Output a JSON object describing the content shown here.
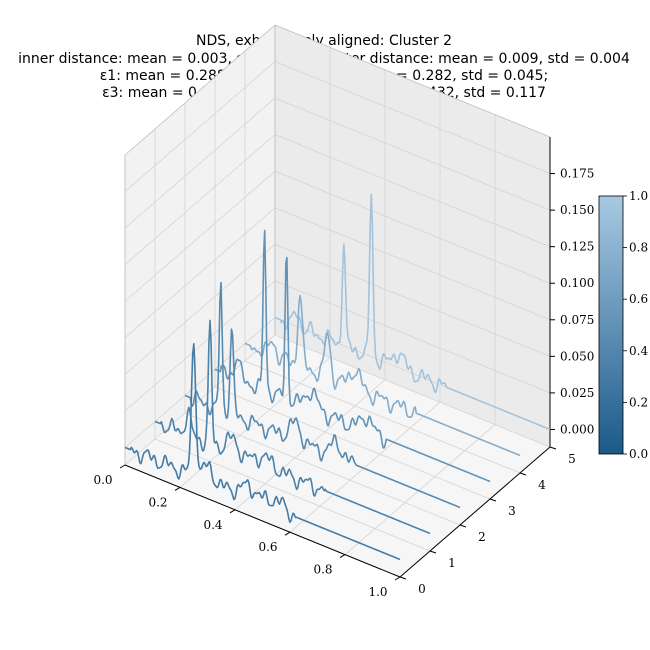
{
  "chart_data": {
    "type": "line",
    "projection": "3d",
    "title_lines": [
      "NDS, exhaustively aligned: Cluster 2",
      "inner distance: mean = 0.003, std = 0.001; outer distance: mean = 0.009, std = 0.004",
      "ε1: mean = 0.288, std = 0.111; ε2: mean = 0.282, std = 0.045;",
      "ε3: mean = 0.533, std = 0.074; ε4: mean = 0.432, std = 0.117"
    ],
    "x_ticks": [
      "0.0",
      "0.2",
      "0.4",
      "0.6",
      "0.8",
      "1.0"
    ],
    "y_ticks": [
      "0",
      "1",
      "2",
      "3",
      "4",
      "5"
    ],
    "z_ticks": [
      "0.000",
      "0.025",
      "0.050",
      "0.075",
      "0.100",
      "0.125",
      "0.150",
      "0.175"
    ],
    "xlim": [
      0,
      1
    ],
    "ylim": [
      0,
      5
    ],
    "zlim": [
      -0.012,
      0.2
    ],
    "grid": true,
    "colorbar": {
      "ticks": [
        "0.0",
        "0.2",
        "0.4",
        "0.6",
        "0.8",
        "1.0"
      ],
      "range": [
        0,
        1
      ],
      "color_low": "#1a5a8a",
      "color_high": "#a9c9e2"
    },
    "series": [
      {
        "y": 0,
        "color_value": 0.3,
        "peaks": [
          [
            0.25,
            0.09,
            0.008
          ],
          [
            0.3,
            0.01,
            0.02
          ],
          [
            0.45,
            0.008,
            0.03
          ],
          [
            0.55,
            0.006,
            0.03
          ]
        ],
        "x_start": 0.0,
        "x_end": 1.0
      },
      {
        "y": 1,
        "color_value": 0.35,
        "peaks": [
          [
            0.12,
            0.015,
            0.01
          ],
          [
            0.2,
            0.08,
            0.006
          ],
          [
            0.28,
            0.01,
            0.02
          ],
          [
            0.4,
            0.006,
            0.03
          ]
        ],
        "x_start": 0.0,
        "x_end": 1.0
      },
      {
        "y": 2,
        "color_value": 0.42,
        "peaks": [
          [
            0.13,
            0.09,
            0.005
          ],
          [
            0.17,
            0.06,
            0.006
          ],
          [
            0.4,
            0.012,
            0.02
          ],
          [
            0.55,
            0.01,
            0.02
          ]
        ],
        "x_start": 0.0,
        "x_end": 1.0
      },
      {
        "y": 3,
        "color_value": 0.5,
        "peaks": [
          [
            0.08,
            0.015,
            0.01
          ],
          [
            0.18,
            0.11,
            0.005
          ],
          [
            0.26,
            0.1,
            0.005
          ],
          [
            0.35,
            0.012,
            0.02
          ],
          [
            0.55,
            0.01,
            0.02
          ]
        ],
        "x_start": 0.0,
        "x_end": 1.0
      },
      {
        "y": 4,
        "color_value": 0.75,
        "peaks": [
          [
            0.1,
            0.01,
            0.01
          ],
          [
            0.2,
            0.05,
            0.008
          ],
          [
            0.3,
            0.03,
            0.01
          ],
          [
            0.4,
            0.012,
            0.02
          ]
        ],
        "x_start": 0.0,
        "x_end": 1.0
      },
      {
        "y": 5,
        "color_value": 0.95,
        "peaks": [
          [
            0.08,
            0.01,
            0.01
          ],
          [
            0.25,
            0.07,
            0.006
          ],
          [
            0.35,
            0.11,
            0.006
          ],
          [
            0.45,
            0.01,
            0.02
          ]
        ],
        "x_start": 0.0,
        "x_end": 1.0
      }
    ]
  }
}
